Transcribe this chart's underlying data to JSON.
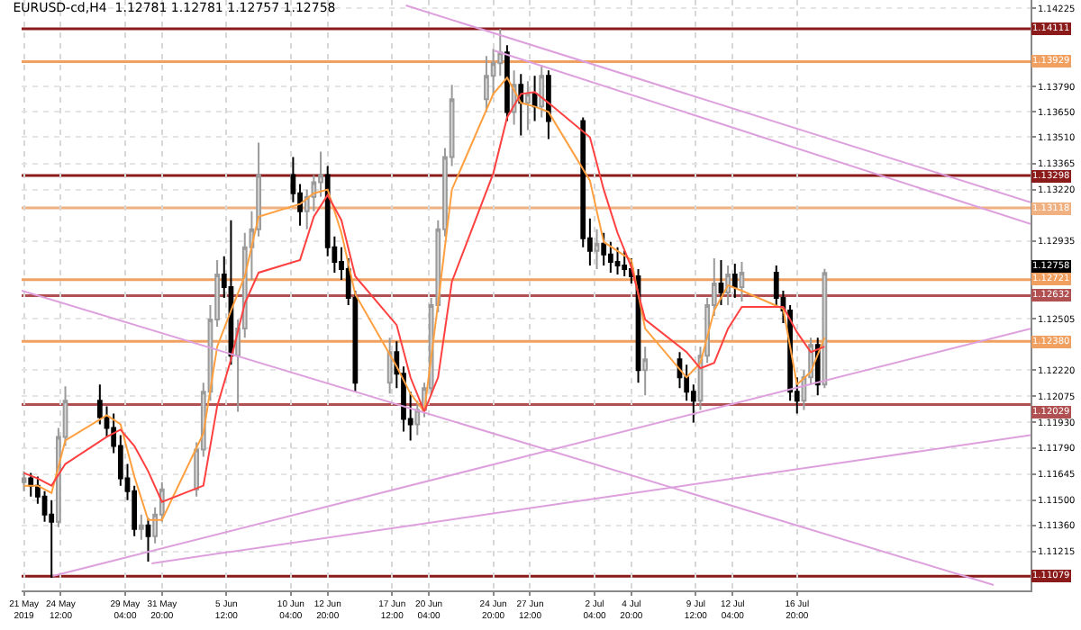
{
  "chart_data": {
    "type": "candlestick",
    "title": "EURUSD-cd,H4  1.12781 1.12781 1.12757 1.12758",
    "x": [
      "2019-05-21T20:00",
      "2019-05-22T08:00",
      "2019-05-22T20:00",
      "2019-05-23T08:00",
      "2019-05-23T20:00",
      "2019-05-24T08:00",
      "2019-05-24T20:00",
      "2019-05-27T08:00",
      "2019-05-27T20:00",
      "2019-05-28T08:00",
      "2019-05-28T20:00",
      "2019-05-29T08:00",
      "2019-05-29T20:00",
      "2019-05-30T08:00",
      "2019-05-30T20:00",
      "2019-05-31T08:00",
      "2019-05-31T20:00",
      "2019-06-03T08:00",
      "2019-06-03T20:00",
      "2019-06-04T08:00",
      "2019-06-04T20:00",
      "2019-06-05T08:00",
      "2019-06-05T20:00",
      "2019-06-06T08:00",
      "2019-06-06T20:00",
      "2019-06-07T08:00",
      "2019-06-07T20:00",
      "2019-06-10T08:00",
      "2019-06-10T20:00",
      "2019-06-11T08:00",
      "2019-06-11T20:00",
      "2019-06-12T08:00",
      "2019-06-12T20:00",
      "2019-06-13T08:00",
      "2019-06-13T20:00",
      "2019-06-14T08:00",
      "2019-06-14T20:00",
      "2019-06-17T08:00",
      "2019-06-17T20:00",
      "2019-06-18T08:00",
      "2019-06-18T20:00",
      "2019-06-19T08:00",
      "2019-06-19T20:00",
      "2019-06-20T08:00",
      "2019-06-20T20:00",
      "2019-06-21T08:00",
      "2019-06-21T20:00",
      "2019-06-24T08:00",
      "2019-06-24T20:00",
      "2019-06-25T08:00",
      "2019-06-25T20:00",
      "2019-06-26T08:00",
      "2019-06-26T20:00",
      "2019-06-27T08:00",
      "2019-06-27T20:00",
      "2019-06-28T08:00",
      "2019-06-28T20:00",
      "2019-07-01T08:00",
      "2019-07-01T20:00",
      "2019-07-02T08:00",
      "2019-07-02T20:00",
      "2019-07-03T08:00",
      "2019-07-03T20:00",
      "2019-07-04T08:00",
      "2019-07-04T20:00",
      "2019-07-05T08:00",
      "2019-07-05T20:00",
      "2019-07-08T08:00",
      "2019-07-08T20:00",
      "2019-07-09T08:00",
      "2019-07-09T20:00",
      "2019-07-10T08:00",
      "2019-07-10T20:00",
      "2019-07-11T08:00",
      "2019-07-11T20:00",
      "2019-07-12T08:00",
      "2019-07-12T20:00",
      "2019-07-15T08:00",
      "2019-07-15T20:00",
      "2019-07-16T08:00",
      "2019-07-16T20:00",
      "2019-07-17T08:00",
      "2019-07-17T20:00",
      "2019-07-18T08:00",
      "2019-07-18T20:00"
    ],
    "ohlc": [
      [
        1.116,
        1.1166,
        1.1155,
        1.1162
      ],
      [
        1.1162,
        1.1165,
        1.1152,
        1.1158
      ],
      [
        1.1158,
        1.1163,
        1.1148,
        1.1152
      ],
      [
        1.1152,
        1.1155,
        1.1138,
        1.1142
      ],
      [
        1.1142,
        1.115,
        1.1107,
        1.1138
      ],
      [
        1.1138,
        1.119,
        1.1135,
        1.1185
      ],
      [
        1.1185,
        1.1213,
        1.118,
        1.1205
      ],
      [
        1.1205,
        1.1214,
        1.1192,
        1.1196
      ],
      [
        1.1196,
        1.1202,
        1.1185,
        1.119
      ],
      [
        1.119,
        1.1198,
        1.1176,
        1.118
      ],
      [
        1.118,
        1.1186,
        1.1158,
        1.1162
      ],
      [
        1.1162,
        1.117,
        1.115,
        1.1155
      ],
      [
        1.1155,
        1.1158,
        1.113,
        1.1134
      ],
      [
        1.1134,
        1.1142,
        1.1128,
        1.1136
      ],
      [
        1.1136,
        1.114,
        1.1116,
        1.113
      ],
      [
        1.113,
        1.1146,
        1.1126,
        1.1142
      ],
      [
        1.1142,
        1.116,
        1.1138,
        1.1156
      ],
      [
        1.1156,
        1.1182,
        1.1152,
        1.1178
      ],
      [
        1.1178,
        1.1215,
        1.1174,
        1.121
      ],
      [
        1.121,
        1.1258,
        1.1205,
        1.125
      ],
      [
        1.125,
        1.1283,
        1.1246,
        1.1275
      ],
      [
        1.1275,
        1.1285,
        1.1262,
        1.1268
      ],
      [
        1.1268,
        1.1305,
        1.1225,
        1.123
      ],
      [
        1.123,
        1.125,
        1.1199,
        1.1245
      ],
      [
        1.1245,
        1.1298,
        1.124,
        1.129
      ],
      [
        1.129,
        1.131,
        1.1272,
        1.13
      ],
      [
        1.13,
        1.1348,
        1.1296,
        1.133
      ],
      [
        1.133,
        1.134,
        1.1315,
        1.132
      ],
      [
        1.132,
        1.1325,
        1.1302,
        1.131
      ],
      [
        1.131,
        1.1322,
        1.13,
        1.1318
      ],
      [
        1.1318,
        1.133,
        1.131,
        1.1326
      ],
      [
        1.1326,
        1.1343,
        1.1318,
        1.133
      ],
      [
        1.133,
        1.1335,
        1.1285,
        1.129
      ],
      [
        1.129,
        1.1296,
        1.1276,
        1.1282
      ],
      [
        1.1282,
        1.129,
        1.1272,
        1.1278
      ],
      [
        1.1278,
        1.1284,
        1.1258,
        1.1262
      ],
      [
        1.1262,
        1.1266,
        1.121,
        1.1215
      ],
      [
        1.1215,
        1.124,
        1.1209,
        1.1232
      ],
      [
        1.1232,
        1.1238,
        1.1212,
        1.122
      ],
      [
        1.122,
        1.1224,
        1.1188,
        1.1195
      ],
      [
        1.1195,
        1.121,
        1.1183,
        1.1192
      ],
      [
        1.1192,
        1.1205,
        1.1186,
        1.12
      ],
      [
        1.12,
        1.1215,
        1.1196,
        1.1212
      ],
      [
        1.1212,
        1.1262,
        1.1208,
        1.1258
      ],
      [
        1.1258,
        1.1305,
        1.1254,
        1.13
      ],
      [
        1.13,
        1.1345,
        1.1296,
        1.134
      ],
      [
        1.134,
        1.138,
        1.1335,
        1.1372
      ],
      [
        1.1372,
        1.1396,
        1.1365,
        1.1385
      ],
      [
        1.1385,
        1.14,
        1.1374,
        1.1392
      ],
      [
        1.1392,
        1.1411,
        1.1385,
        1.1398
      ],
      [
        1.1398,
        1.1402,
        1.136,
        1.1365
      ],
      [
        1.1365,
        1.1388,
        1.1358,
        1.138
      ],
      [
        1.138,
        1.1386,
        1.1352,
        1.137
      ],
      [
        1.137,
        1.1382,
        1.1355,
        1.1375
      ],
      [
        1.1375,
        1.1385,
        1.136,
        1.1368
      ],
      [
        1.1368,
        1.1391,
        1.1362,
        1.1385
      ],
      [
        1.1385,
        1.1388,
        1.135,
        1.136
      ],
      [
        1.136,
        1.1362,
        1.129,
        1.1295
      ],
      [
        1.1295,
        1.1306,
        1.128,
        1.1288
      ],
      [
        1.1288,
        1.13,
        1.1278,
        1.1292
      ],
      [
        1.1292,
        1.1298,
        1.128,
        1.1286
      ],
      [
        1.1286,
        1.1293,
        1.1276,
        1.1282
      ],
      [
        1.1282,
        1.129,
        1.1275,
        1.128
      ],
      [
        1.128,
        1.1288,
        1.1274,
        1.1278
      ],
      [
        1.1278,
        1.1284,
        1.127,
        1.1274
      ],
      [
        1.1274,
        1.1278,
        1.1215,
        1.1222
      ],
      [
        1.1222,
        1.1235,
        1.1208,
        1.1228
      ],
      [
        1.1228,
        1.1232,
        1.1212,
        1.1218
      ],
      [
        1.1218,
        1.1225,
        1.1205,
        1.121
      ],
      [
        1.121,
        1.1214,
        1.1193,
        1.1205
      ],
      [
        1.1205,
        1.1235,
        1.12,
        1.123
      ],
      [
        1.123,
        1.1262,
        1.1226,
        1.1258
      ],
      [
        1.1258,
        1.1284,
        1.1252,
        1.127
      ],
      [
        1.127,
        1.1283,
        1.1258,
        1.1265
      ],
      [
        1.1265,
        1.128,
        1.1258,
        1.1275
      ],
      [
        1.1275,
        1.1281,
        1.1262,
        1.1268
      ],
      [
        1.1268,
        1.1282,
        1.126,
        1.1276
      ],
      [
        1.1276,
        1.128,
        1.1258,
        1.1262
      ],
      [
        1.1262,
        1.1266,
        1.1248,
        1.1255
      ],
      [
        1.1255,
        1.1258,
        1.1205,
        1.121
      ],
      [
        1.121,
        1.1218,
        1.1198,
        1.1205
      ],
      [
        1.1205,
        1.1222,
        1.12,
        1.1218
      ],
      [
        1.1218,
        1.124,
        1.1214,
        1.1236
      ],
      [
        1.1236,
        1.124,
        1.1208,
        1.1214
      ],
      [
        1.1214,
        1.12781,
        1.1212,
        1.12758
      ]
    ],
    "series": [
      {
        "type": "line",
        "color": "#ffa040",
        "x": [
          "2019-05-21T20:00",
          "2019-05-22T20:00",
          "2019-05-23T20:00",
          "2019-05-24T20:00",
          "2019-05-27T20:00",
          "2019-05-28T20:00",
          "2019-05-29T20:00",
          "2019-05-30T20:00",
          "2019-05-31T20:00",
          "2019-06-03T20:00",
          "2019-06-04T20:00",
          "2019-06-05T20:00",
          "2019-06-06T20:00",
          "2019-06-07T20:00",
          "2019-06-10T20:00",
          "2019-06-11T20:00",
          "2019-06-12T20:00",
          "2019-06-13T20:00",
          "2019-06-14T20:00",
          "2019-06-17T20:00",
          "2019-06-18T20:00",
          "2019-06-19T20:00",
          "2019-06-20T20:00",
          "2019-06-21T20:00",
          "2019-06-24T20:00",
          "2019-06-25T20:00",
          "2019-06-26T20:00",
          "2019-06-27T20:00",
          "2019-06-28T20:00",
          "2019-07-01T20:00",
          "2019-07-02T20:00",
          "2019-07-03T20:00",
          "2019-07-04T20:00",
          "2019-07-05T20:00",
          "2019-07-08T20:00",
          "2019-07-09T20:00",
          "2019-07-10T20:00",
          "2019-07-11T20:00",
          "2019-07-12T20:00",
          "2019-07-15T20:00",
          "2019-07-16T20:00",
          "2019-07-17T20:00",
          "2019-07-18T20:00"
        ],
        "values": [
          1.1158,
          1.1158,
          1.1154,
          1.1183,
          1.1197,
          1.1192,
          1.1163,
          1.1139,
          1.1139,
          1.1187,
          1.1235,
          1.1255,
          1.1274,
          1.1307,
          1.1314,
          1.132,
          1.1322,
          1.1298,
          1.1264,
          1.1224,
          1.1209,
          1.1199,
          1.1259,
          1.1322,
          1.1375,
          1.1384,
          1.137,
          1.1368,
          1.1365,
          1.1327,
          1.1293,
          1.1288,
          1.1283,
          1.1245,
          1.1218,
          1.1226,
          1.1255,
          1.1269,
          1.1266,
          1.1256,
          1.1214,
          1.1221,
          1.124
        ]
      },
      {
        "type": "line",
        "color": "#ff4040",
        "x": [
          "2019-05-21T20:00",
          "2019-05-22T20:00",
          "2019-05-23T20:00",
          "2019-05-24T20:00",
          "2019-05-27T20:00",
          "2019-05-28T20:00",
          "2019-05-29T20:00",
          "2019-05-30T20:00",
          "2019-05-31T20:00",
          "2019-06-03T20:00",
          "2019-06-04T20:00",
          "2019-06-05T20:00",
          "2019-06-06T20:00",
          "2019-06-07T20:00",
          "2019-06-10T20:00",
          "2019-06-11T20:00",
          "2019-06-12T20:00",
          "2019-06-13T20:00",
          "2019-06-14T20:00",
          "2019-06-17T20:00",
          "2019-06-18T20:00",
          "2019-06-19T20:00",
          "2019-06-20T20:00",
          "2019-06-21T20:00",
          "2019-06-24T20:00",
          "2019-06-25T20:00",
          "2019-06-26T20:00",
          "2019-06-27T20:00",
          "2019-06-28T20:00",
          "2019-07-01T20:00",
          "2019-07-02T20:00",
          "2019-07-03T20:00",
          "2019-07-04T20:00",
          "2019-07-05T20:00",
          "2019-07-08T20:00",
          "2019-07-09T20:00",
          "2019-07-10T20:00",
          "2019-07-11T20:00",
          "2019-07-12T20:00",
          "2019-07-15T20:00",
          "2019-07-16T20:00",
          "2019-07-17T20:00",
          "2019-07-18T20:00"
        ],
        "values": [
          1.1165,
          1.1162,
          1.1158,
          1.117,
          1.1185,
          1.1189,
          1.118,
          1.1166,
          1.1149,
          1.1158,
          1.1202,
          1.1228,
          1.1259,
          1.1276,
          1.1283,
          1.1307,
          1.1319,
          1.1305,
          1.1274,
          1.1247,
          1.1218,
          1.1199,
          1.1218,
          1.1271,
          1.1331,
          1.1362,
          1.1375,
          1.1376,
          1.137,
          1.1351,
          1.1322,
          1.1298,
          1.1279,
          1.125,
          1.1232,
          1.1223,
          1.1226,
          1.1245,
          1.1257,
          1.1257,
          1.1243,
          1.1232,
          1.1235
        ]
      },
      {
        "type": "line",
        "color": "#dda0dd",
        "x": [
          "2019-06-18T12:00",
          "2019-08-02T18:00"
        ],
        "values": [
          1.1424,
          1.1315
        ]
      },
      {
        "type": "line",
        "color": "#dda0dd",
        "x": [
          "2019-06-24T22:00",
          "2019-08-02T18:00"
        ],
        "values": [
          1.1399,
          1.1303
        ]
      },
      {
        "type": "line",
        "color": "#dda0dd",
        "x": [
          "2019-05-21T16:00",
          "2019-07-31T02:00"
        ],
        "values": [
          1.1266,
          1.1103
        ]
      },
      {
        "type": "line",
        "color": "#dda0dd",
        "x": [
          "2019-05-23T22:00",
          "2019-08-02T18:00"
        ],
        "values": [
          1.1108,
          1.1245
        ]
      },
      {
        "type": "line",
        "color": "#dda0dd",
        "x": [
          "2019-05-31T02:00",
          "2019-08-02T18:00"
        ],
        "values": [
          1.1115,
          1.1186
        ]
      }
    ],
    "ref_lines": [
      {
        "axis": "y",
        "value": 1.14111,
        "label": "1.14111",
        "color": "#8b1a1a"
      },
      {
        "axis": "y",
        "value": 1.13929,
        "label": "1.13929",
        "color": "#f0a060"
      },
      {
        "axis": "y",
        "value": 1.13298,
        "label": "1.13298",
        "color": "#8b1a1a"
      },
      {
        "axis": "y",
        "value": 1.13118,
        "label": "1.13118",
        "color": "#f0b080"
      },
      {
        "axis": "y",
        "value": 1.12721,
        "label": "1.12721",
        "color": "#f0a060"
      },
      {
        "axis": "y",
        "value": 1.12632,
        "label": "1.12632",
        "color": "#b05050"
      },
      {
        "axis": "y",
        "value": 1.1238,
        "label": "1.12380",
        "color": "#f0a060"
      },
      {
        "axis": "y",
        "value": 1.12029,
        "label": "1.12029",
        "color": "#b05050"
      },
      {
        "axis": "y",
        "value": 1.11079,
        "label": "1.11079",
        "color": "#8b1a1a"
      }
    ],
    "annotations": [
      "1.12758"
    ],
    "xlim": [
      "2019-05-21T16:00",
      "2019-08-02T18:00"
    ],
    "xticks": [
      {
        "value": "2019-05-21T20:00",
        "label": "21 May 2019"
      },
      {
        "value": "2019-05-24T12:00",
        "label": "24 May 12:00"
      },
      {
        "value": "2019-05-29T04:00",
        "label": "29 May 04:00"
      },
      {
        "value": "2019-05-31T20:00",
        "label": "31 May 20:00"
      },
      {
        "value": "2019-06-05T12:00",
        "label": "5 Jun 12:00"
      },
      {
        "value": "2019-06-10T04:00",
        "label": "10 Jun 04:00"
      },
      {
        "value": "2019-06-12T20:00",
        "label": "12 Jun 20:00"
      },
      {
        "value": "2019-06-17T12:00",
        "label": "17 Jun 12:00"
      },
      {
        "value": "2019-06-20T04:00",
        "label": "20 Jun 04:00"
      },
      {
        "value": "2019-06-24T20:00",
        "label": "24 Jun 20:00"
      },
      {
        "value": "2019-06-27T12:00",
        "label": "27 Jun 12:00"
      },
      {
        "value": "2019-07-02T04:00",
        "label": "2 Jul 04:00"
      },
      {
        "value": "2019-07-04T20:00",
        "label": "4 Jul 20:00"
      },
      {
        "value": "2019-07-09T12:00",
        "label": "9 Jul 12:00"
      },
      {
        "value": "2019-07-12T04:00",
        "label": "12 Jul 04:00"
      },
      {
        "value": "2019-07-16T20:00",
        "label": "16 Jul 20:00"
      }
    ],
    "ylim": [
      1.11,
      1.1427
    ],
    "yticks": [
      {
        "value": 1.14225,
        "label": "1.14225"
      },
      {
        "value": 1.1379,
        "label": "1.13790"
      },
      {
        "value": 1.1365,
        "label": "1.13650"
      },
      {
        "value": 1.1351,
        "label": "1.13510"
      },
      {
        "value": 1.13365,
        "label": "1.13365"
      },
      {
        "value": 1.1322,
        "label": "1.13220"
      },
      {
        "value": 1.12935,
        "label": "1.12935"
      },
      {
        "value": 1.12505,
        "label": "1.12505"
      },
      {
        "value": 1.1222,
        "label": "1.12220"
      },
      {
        "value": 1.12075,
        "label": "1.12075"
      },
      {
        "value": 1.1193,
        "label": "1.11930"
      },
      {
        "value": 1.1179,
        "label": "1.11790"
      },
      {
        "value": 1.11645,
        "label": "1.11645"
      },
      {
        "value": 1.115,
        "label": "1.11500"
      },
      {
        "value": 1.1136,
        "label": "1.11360"
      },
      {
        "value": 1.11215,
        "label": "1.11215"
      }
    ],
    "grid": true
  }
}
